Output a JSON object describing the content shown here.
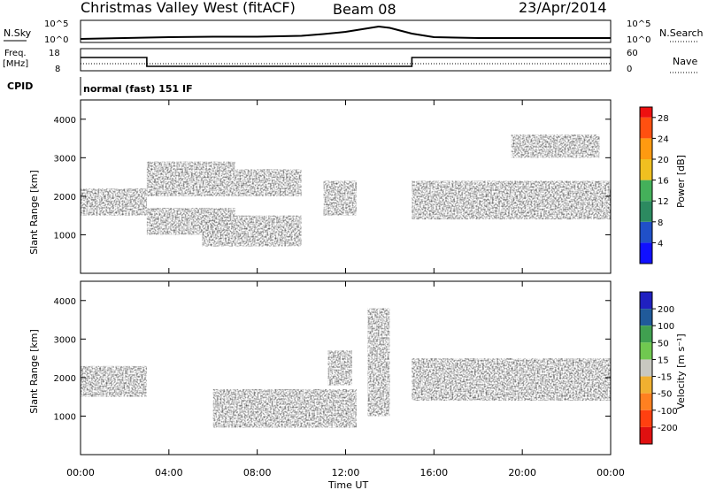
{
  "header": {
    "station": "Christmas Valley West (fitACF)",
    "beam": "Beam 08",
    "date": "23/Apr/2014"
  },
  "strips": {
    "nsky_label": "N.Sky",
    "nsky_ticks": [
      "10^5",
      "10^0"
    ],
    "nsearch_label": "N.Search",
    "freq_label_1": "Freq.",
    "freq_label_2": "[MHz]",
    "freq_ticks": [
      "18",
      "8"
    ],
    "nave_label": "Nave",
    "nave_ticks": [
      "60",
      "0"
    ],
    "cpid_label": "CPID",
    "cpid_value": "normal (fast) 151 IF"
  },
  "panels": {
    "power_ylabel": "Slant Range [km]",
    "velocity_ylabel": "Slant Range [km]",
    "yticks": [
      "4000",
      "3000",
      "2000",
      "1000"
    ],
    "xlabel": "Time UT",
    "xticks": [
      "00:00",
      "04:00",
      "08:00",
      "12:00",
      "16:00",
      "20:00",
      "00:00"
    ]
  },
  "colorbars": {
    "power_label": "Power [dB]",
    "power_ticks": [
      "28",
      "24",
      "20",
      "16",
      "12",
      "8",
      "4"
    ],
    "velocity_label": "Velocity [m s⁻¹]",
    "velocity_ticks": [
      "200",
      "100",
      "50",
      "15",
      "-15",
      "-50",
      "-100",
      "-200"
    ]
  },
  "chart_data": [
    {
      "type": "line",
      "name": "N.Sky / N.Search",
      "x_unit": "hours UT",
      "x": [
        0,
        2,
        4,
        6,
        8,
        10,
        11,
        12,
        13,
        13.5,
        14,
        15,
        16,
        18,
        20,
        22,
        24
      ],
      "y_log10": [
        0.8,
        1.0,
        1.2,
        1.3,
        1.3,
        1.5,
        1.9,
        2.4,
        3.2,
        3.6,
        3.3,
        2.0,
        1.2,
        1.0,
        1.0,
        1.0,
        1.0
      ]
    },
    {
      "type": "line",
      "name": "Freq. [MHz] / Nave",
      "x": [
        0,
        3,
        3,
        7,
        7,
        15,
        15,
        24
      ],
      "freq_mhz": [
        14,
        14,
        10,
        10,
        10,
        10,
        14,
        14
      ],
      "freq_ylim": [
        8,
        18
      ],
      "nave_ylim": [
        0,
        60
      ]
    },
    {
      "type": "heatmap",
      "name": "Power",
      "xlim": [
        0,
        24
      ],
      "ylim_km": [
        0,
        4500
      ],
      "colorbar_range_db": [
        0,
        30
      ],
      "features": [
        {
          "t_start": 0,
          "t_end": 3,
          "range_km": [
            1500,
            2200
          ],
          "power_db": 26
        },
        {
          "t_start": 3,
          "t_end": 7,
          "range_km": [
            1000,
            1700
          ],
          "power_db": 26
        },
        {
          "t_start": 3,
          "t_end": 7,
          "range_km": [
            2000,
            2900
          ],
          "power_db": 20
        },
        {
          "t_start": 7,
          "t_end": 10,
          "range_km": [
            2000,
            2700
          ],
          "power_db": 18
        },
        {
          "t_start": 5.5,
          "t_end": 10,
          "range_km": [
            700,
            1500
          ],
          "power_db": 22
        },
        {
          "t_start": 11,
          "t_end": 12.5,
          "range_km": [
            1500,
            2400
          ],
          "power_db": 12
        },
        {
          "t_start": 15,
          "t_end": 24,
          "range_km": [
            1400,
            2400
          ],
          "power_db": 24
        },
        {
          "t_start": 19.5,
          "t_end": 23.5,
          "range_km": [
            3000,
            3600
          ],
          "power_db": 18
        }
      ]
    },
    {
      "type": "heatmap",
      "name": "Velocity",
      "xlim": [
        0,
        24
      ],
      "ylim_km": [
        0,
        4500
      ],
      "colorbar_range_ms": [
        -250,
        250
      ],
      "features": [
        {
          "t_start": 0,
          "t_end": 3,
          "range_km": [
            1500,
            2300
          ],
          "velocity_ms": 0
        },
        {
          "t_start": 6,
          "t_end": 12.5,
          "range_km": [
            700,
            1700
          ],
          "velocity_ms": -60
        },
        {
          "t_start": 11.2,
          "t_end": 12.3,
          "range_km": [
            1800,
            2700
          ],
          "velocity_ms": -220
        },
        {
          "t_start": 13,
          "t_end": 14,
          "range_km": [
            1000,
            3800
          ],
          "velocity_ms": 40
        },
        {
          "t_start": 15,
          "t_end": 24,
          "range_km": [
            1400,
            2500
          ],
          "velocity_ms": 0
        }
      ]
    }
  ]
}
